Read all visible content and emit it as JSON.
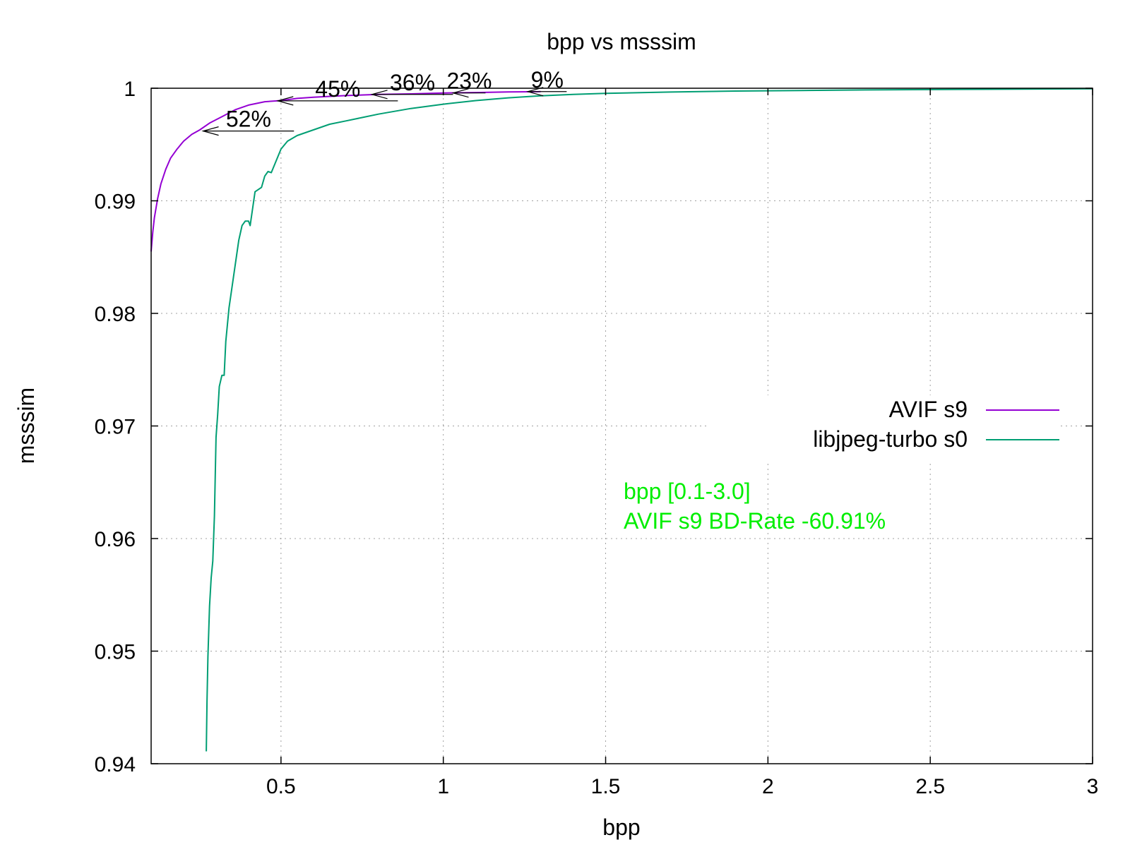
{
  "chart_data": {
    "type": "line",
    "title": "bpp vs msssim",
    "xlabel": "bpp",
    "ylabel": "msssim",
    "xlim": [
      0.1,
      3.0
    ],
    "ylim": [
      0.94,
      1.0
    ],
    "xticks": [
      {
        "value": 0.5,
        "label": "0.5"
      },
      {
        "value": 1,
        "label": "1"
      },
      {
        "value": 1.5,
        "label": "1.5"
      },
      {
        "value": 2,
        "label": "2"
      },
      {
        "value": 2.5,
        "label": "2.5"
      },
      {
        "value": 3,
        "label": "3"
      }
    ],
    "yticks": [
      {
        "value": 0.94,
        "label": "0.94"
      },
      {
        "value": 0.95,
        "label": "0.95"
      },
      {
        "value": 0.96,
        "label": "0.96"
      },
      {
        "value": 0.97,
        "label": "0.97"
      },
      {
        "value": 0.98,
        "label": "0.98"
      },
      {
        "value": 0.99,
        "label": "0.99"
      },
      {
        "value": 1.0,
        "label": "1"
      }
    ],
    "grid": true,
    "legend_position": "right",
    "series": [
      {
        "name": "AVIF s9",
        "color": "#9400d3",
        "points": [
          [
            0.1,
            0.9855
          ],
          [
            0.105,
            0.9872
          ],
          [
            0.11,
            0.9885
          ],
          [
            0.12,
            0.9902
          ],
          [
            0.13,
            0.9915
          ],
          [
            0.145,
            0.9928
          ],
          [
            0.16,
            0.9938
          ],
          [
            0.18,
            0.9946
          ],
          [
            0.2,
            0.9953
          ],
          [
            0.225,
            0.9959
          ],
          [
            0.25,
            0.9963
          ],
          [
            0.28,
            0.9969
          ],
          [
            0.32,
            0.9975
          ],
          [
            0.36,
            0.9981
          ],
          [
            0.4,
            0.9985
          ],
          [
            0.45,
            0.9988
          ],
          [
            0.5,
            0.9989
          ],
          [
            0.55,
            0.9991
          ],
          [
            0.6,
            0.9992
          ],
          [
            0.7,
            0.99935
          ],
          [
            0.8,
            0.99945
          ],
          [
            0.9,
            0.9995
          ],
          [
            1.0,
            0.99958
          ],
          [
            1.1,
            0.99962
          ],
          [
            1.2,
            0.99967
          ],
          [
            1.3,
            0.9997
          ]
        ]
      },
      {
        "name": "libjpeg-turbo s0",
        "color": "#009e73",
        "points": [
          [
            0.27,
            0.9411
          ],
          [
            0.272,
            0.9455
          ],
          [
            0.275,
            0.9495
          ],
          [
            0.28,
            0.954
          ],
          [
            0.285,
            0.9565
          ],
          [
            0.29,
            0.958
          ],
          [
            0.295,
            0.962
          ],
          [
            0.3,
            0.969
          ],
          [
            0.305,
            0.971
          ],
          [
            0.31,
            0.9735
          ],
          [
            0.318,
            0.9745
          ],
          [
            0.325,
            0.9745
          ],
          [
            0.33,
            0.9775
          ],
          [
            0.335,
            0.979
          ],
          [
            0.34,
            0.9805
          ],
          [
            0.35,
            0.9825
          ],
          [
            0.36,
            0.9845
          ],
          [
            0.37,
            0.9865
          ],
          [
            0.38,
            0.9878
          ],
          [
            0.39,
            0.9882
          ],
          [
            0.4,
            0.9882
          ],
          [
            0.405,
            0.9878
          ],
          [
            0.41,
            0.9888
          ],
          [
            0.42,
            0.9908
          ],
          [
            0.43,
            0.991
          ],
          [
            0.44,
            0.9912
          ],
          [
            0.45,
            0.9922
          ],
          [
            0.46,
            0.9926
          ],
          [
            0.47,
            0.9925
          ],
          [
            0.48,
            0.9932
          ],
          [
            0.5,
            0.9946
          ],
          [
            0.52,
            0.9953
          ],
          [
            0.55,
            0.9958
          ],
          [
            0.6,
            0.9963
          ],
          [
            0.65,
            0.9968
          ],
          [
            0.7,
            0.9971
          ],
          [
            0.75,
            0.9974
          ],
          [
            0.8,
            0.9977
          ],
          [
            0.9,
            0.9982
          ],
          [
            1.0,
            0.99858
          ],
          [
            1.1,
            0.9989
          ],
          [
            1.2,
            0.99915
          ],
          [
            1.3,
            0.99933
          ],
          [
            1.4,
            0.99945
          ],
          [
            1.5,
            0.99955
          ],
          [
            1.7,
            0.99966
          ],
          [
            1.9,
            0.99975
          ],
          [
            2.1,
            0.9998
          ],
          [
            2.3,
            0.99985
          ],
          [
            2.6,
            0.9999
          ],
          [
            3.0,
            0.99995
          ]
        ]
      }
    ],
    "annotations": [
      {
        "label": "52%",
        "x_from": 0.54,
        "x_to": 0.26,
        "y": 0.9962
      },
      {
        "label": "45%",
        "x_from": 0.86,
        "x_to": 0.49,
        "y": 0.99888
      },
      {
        "label": "36%",
        "x_from": 1.03,
        "x_to": 0.78,
        "y": 0.99945
      },
      {
        "label": "23%",
        "x_from": 1.13,
        "x_to": 1.03,
        "y": 0.99958
      },
      {
        "label": "9%",
        "x_from": 1.38,
        "x_to": 1.26,
        "y": 0.9997
      }
    ],
    "notes": {
      "color": "#00ee00",
      "line1": "bpp [0.1-3.0]",
      "line2": "AVIF s9 BD-Rate -60.91%"
    }
  }
}
